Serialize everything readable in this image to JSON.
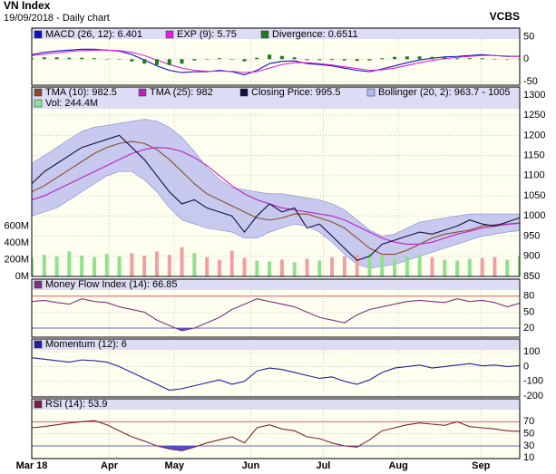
{
  "header": {
    "title": "VN Index",
    "subtitle": "19/09/2018 - Daily chart",
    "source": "VCBS"
  },
  "chart_data": [
    {
      "type": "line",
      "ylim": [
        -58,
        69
      ],
      "yticks": [
        -50,
        0,
        50
      ],
      "grid": true,
      "series": [
        {
          "name": "MACD (26, 12): 6.401",
          "color": "#1010c0",
          "style": "line",
          "values": [
            10,
            15,
            18,
            20,
            22,
            22,
            20,
            18,
            10,
            -2,
            -15,
            -25,
            -30,
            -28,
            -28,
            -25,
            -28,
            -35,
            -25,
            -10,
            -5,
            -4,
            -10,
            -12,
            -15,
            -20,
            -25,
            -28,
            -22,
            -15,
            -8,
            -2,
            2,
            5,
            6,
            8,
            10,
            8,
            6,
            6.401
          ]
        },
        {
          "name": "EXP (9): 5.75",
          "color": "#e020e0",
          "style": "line",
          "values": [
            8,
            11,
            14,
            17,
            19,
            20,
            20,
            19,
            15,
            8,
            -2,
            -12,
            -20,
            -25,
            -27,
            -27,
            -27,
            -30,
            -28,
            -20,
            -12,
            -8,
            -8,
            -10,
            -13,
            -17,
            -21,
            -25,
            -24,
            -20,
            -14,
            -8,
            -3,
            1,
            4,
            6,
            8,
            8,
            7,
            5.75
          ]
        },
        {
          "name": "Divergence: 0.6511",
          "color": "#207a20",
          "style": "bar",
          "values": [
            2,
            4,
            4,
            3,
            3,
            2,
            0,
            -1,
            -5,
            -10,
            -13,
            -13,
            -10,
            -3,
            -1,
            2,
            -1,
            -5,
            3,
            10,
            7,
            4,
            -2,
            -2,
            -2,
            -3,
            -4,
            -3,
            2,
            5,
            6,
            6,
            5,
            4,
            2,
            2,
            2,
            0,
            -1,
            0.6511
          ]
        }
      ]
    },
    {
      "type": "line",
      "ylim": [
        850,
        1320
      ],
      "yticks": [
        850,
        900,
        950,
        1000,
        1050,
        1100,
        1150,
        1200,
        1250,
        1300
      ],
      "grid": true,
      "y2lim": [
        0,
        2270
      ],
      "y2ticks": [
        {
          "value": 0,
          "label": "0M"
        },
        {
          "value": 200,
          "label": "200M"
        },
        {
          "value": 400,
          "label": "400M"
        },
        {
          "value": 600,
          "label": "600M"
        }
      ],
      "series": [
        {
          "name": "Bollinger (20, 2): 963.7 - 1005",
          "color": "#b4b8ee",
          "style": "band",
          "upper": [
            1130,
            1150,
            1170,
            1190,
            1210,
            1220,
            1225,
            1230,
            1235,
            1240,
            1235,
            1220,
            1195,
            1160,
            1120,
            1090,
            1070,
            1065,
            1060,
            1055,
            1055,
            1050,
            1045,
            1040,
            1030,
            1015,
            990,
            965,
            950,
            955,
            970,
            985,
            990,
            995,
            1000,
            1005,
            1005,
            1005,
            1005,
            1005
          ],
          "lower": [
            1000,
            1010,
            1020,
            1040,
            1060,
            1080,
            1100,
            1110,
            1110,
            1090,
            1060,
            1020,
            990,
            980,
            970,
            965,
            960,
            945,
            945,
            960,
            970,
            980,
            975,
            960,
            935,
            905,
            880,
            870,
            875,
            880,
            890,
            900,
            910,
            920,
            930,
            940,
            950,
            955,
            960,
            963.7
          ]
        },
        {
          "name": "Vol: 244.4M",
          "color": "#90e090",
          "down_color": "#f0a0a0",
          "style": "bar",
          "axis": "y2",
          "values": [
            220,
            260,
            240,
            300,
            250,
            230,
            270,
            240,
            280,
            250,
            300,
            260,
            350,
            280,
            230,
            200,
            310,
            220,
            190,
            180,
            200,
            170,
            210,
            190,
            230,
            240,
            260,
            280,
            250,
            220,
            240,
            260,
            230,
            200,
            190,
            210,
            220,
            230,
            200,
            244.4
          ]
        },
        {
          "name": "TMA (10): 982.5",
          "color": "#8b4a2b",
          "style": "line",
          "values": [
            1060,
            1075,
            1095,
            1115,
            1135,
            1155,
            1170,
            1180,
            1185,
            1180,
            1165,
            1140,
            1110,
            1080,
            1055,
            1040,
            1025,
            1010,
            995,
            990,
            995,
            1005,
            1005,
            995,
            985,
            970,
            945,
            920,
            905,
            905,
            915,
            930,
            945,
            955,
            960,
            965,
            975,
            978,
            980,
            982.5
          ]
        },
        {
          "name": "TMA (25): 982",
          "color": "#c020c0",
          "style": "line",
          "values": [
            1040,
            1050,
            1065,
            1080,
            1095,
            1110,
            1125,
            1140,
            1155,
            1165,
            1170,
            1168,
            1160,
            1145,
            1125,
            1100,
            1075,
            1055,
            1040,
            1030,
            1020,
            1015,
            1010,
            1005,
            1000,
            990,
            975,
            960,
            945,
            935,
            930,
            930,
            935,
            945,
            955,
            962,
            970,
            975,
            979,
            982
          ]
        },
        {
          "name": "Closing Price: 995.5",
          "color": "#101040",
          "style": "line",
          "values": [
            1080,
            1110,
            1130,
            1150,
            1170,
            1180,
            1190,
            1200,
            1170,
            1140,
            1100,
            1060,
            1030,
            1040,
            1020,
            1010,
            1000,
            960,
            1000,
            1030,
            1010,
            1020,
            970,
            980,
            950,
            920,
            890,
            900,
            930,
            940,
            950,
            960,
            955,
            965,
            975,
            990,
            980,
            975,
            985,
            995.5
          ]
        }
      ]
    },
    {
      "type": "line",
      "ylim": [
        3,
        112
      ],
      "yticks": [
        20,
        50,
        80
      ],
      "grid": true,
      "thresholds": [
        80,
        20
      ],
      "threshold_colors": [
        "#e06060",
        "#6060e0"
      ],
      "series": [
        {
          "name": "Money Flow Index (14): 66.85",
          "color": "#803080",
          "style": "line",
          "values": [
            70,
            72,
            68,
            65,
            75,
            70,
            68,
            60,
            55,
            50,
            35,
            25,
            15,
            20,
            30,
            40,
            55,
            65,
            75,
            70,
            65,
            60,
            50,
            40,
            35,
            30,
            45,
            55,
            60,
            65,
            70,
            72,
            70,
            68,
            75,
            70,
            72,
            68,
            60,
            66.85
          ]
        }
      ]
    },
    {
      "type": "line",
      "ylim": [
        -206,
        187
      ],
      "yticks": [
        -200,
        -100,
        0,
        100
      ],
      "grid": true,
      "series": [
        {
          "name": "Momentum (12): 6",
          "color": "#2020a0",
          "style": "line",
          "values": [
            60,
            50,
            40,
            30,
            45,
            40,
            30,
            0,
            -40,
            -80,
            -120,
            -160,
            -150,
            -130,
            -110,
            -90,
            -120,
            -100,
            -30,
            -10,
            -20,
            -40,
            -60,
            -80,
            -70,
            -100,
            -120,
            -90,
            -40,
            -10,
            0,
            10,
            -10,
            0,
            10,
            20,
            5,
            10,
            0,
            6
          ]
        }
      ]
    },
    {
      "type": "line",
      "ylim": [
        9,
        108
      ],
      "yticks": [
        10,
        30,
        50,
        70
      ],
      "grid": true,
      "thresholds": [
        70,
        30
      ],
      "threshold_colors": [
        "#e06060",
        "#6060e0"
      ],
      "xlim": [
        0,
        39
      ],
      "xticks": [
        {
          "value": 0,
          "label": "Mar 18"
        },
        {
          "value": 6.2,
          "label": "Apr"
        },
        {
          "value": 11.4,
          "label": "May"
        },
        {
          "value": 17.5,
          "label": "Jun"
        },
        {
          "value": 23.3,
          "label": "Jul"
        },
        {
          "value": 29.3,
          "label": "Aug"
        },
        {
          "value": 35.9,
          "label": "Sep"
        }
      ],
      "series": [
        {
          "name": "RSI (14): 53.9",
          "color": "#802040",
          "style": "line",
          "values": [
            60,
            62,
            65,
            68,
            70,
            72,
            65,
            55,
            45,
            38,
            30,
            25,
            22,
            28,
            35,
            40,
            45,
            35,
            60,
            65,
            58,
            55,
            45,
            42,
            35,
            30,
            28,
            40,
            55,
            60,
            65,
            68,
            66,
            64,
            70,
            62,
            60,
            58,
            55,
            53.9
          ]
        }
      ]
    }
  ]
}
